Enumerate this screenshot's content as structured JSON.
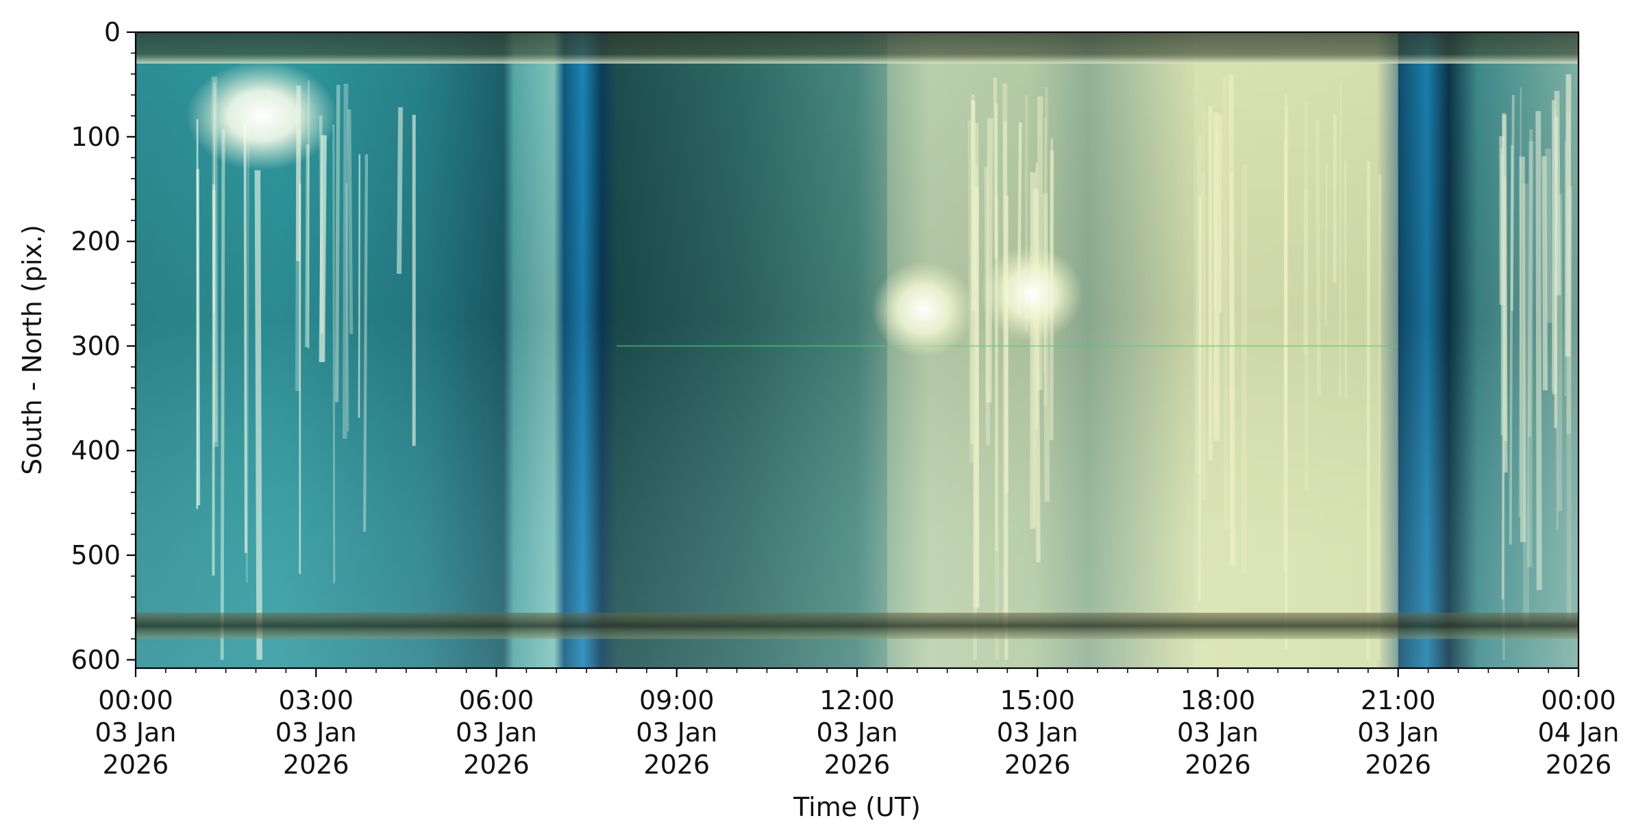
{
  "chart_data": {
    "type": "heatmap",
    "title": "",
    "xlabel": "Time (UT)",
    "ylabel": "South - North (pix.)",
    "x_range": [
      "2026-01-03T00:00",
      "2026-01-04T00:00"
    ],
    "y_range": [
      0,
      608
    ],
    "y_inverted": true,
    "y_ticks": [
      0,
      100,
      200,
      300,
      400,
      500,
      600
    ],
    "y_minor_step": 20,
    "x_ticks": [
      {
        "hour": 0,
        "time": "00:00",
        "date": "03 Jan",
        "year": "2026"
      },
      {
        "hour": 3,
        "time": "03:00",
        "date": "03 Jan",
        "year": "2026"
      },
      {
        "hour": 6,
        "time": "06:00",
        "date": "03 Jan",
        "year": "2026"
      },
      {
        "hour": 9,
        "time": "09:00",
        "date": "03 Jan",
        "year": "2026"
      },
      {
        "hour": 12,
        "time": "12:00",
        "date": "03 Jan",
        "year": "2026"
      },
      {
        "hour": 15,
        "time": "15:00",
        "date": "03 Jan",
        "year": "2026"
      },
      {
        "hour": 18,
        "time": "18:00",
        "date": "03 Jan",
        "year": "2026"
      },
      {
        "hour": 21,
        "time": "21:00",
        "date": "03 Jan",
        "year": "2026"
      },
      {
        "hour": 24,
        "time": "00:00",
        "date": "04 Jan",
        "year": "2026"
      }
    ],
    "x_minor_step_hours": 0.5,
    "grid": false,
    "legend": "none",
    "colormap": "keogram RGB (teal sky, pale-yellow cloud/moonlight, blue twilight bands)",
    "time_segments": [
      {
        "start": 0.0,
        "end": 6.25,
        "appearance": "teal sky with bright moon streak and vertical light streaks"
      },
      {
        "start": 6.25,
        "end": 7.15,
        "appearance": "pale teal transition bands"
      },
      {
        "start": 7.15,
        "end": 8.0,
        "appearance": "deep blue twilight stripes"
      },
      {
        "start": 8.0,
        "end": 12.5,
        "appearance": "dark teal-green sky"
      },
      {
        "start": 12.5,
        "end": 17.6,
        "appearance": "bright pale-yellow glow with moon spots"
      },
      {
        "start": 17.6,
        "end": 21.0,
        "appearance": "pale yellow-green cloud streaks"
      },
      {
        "start": 21.0,
        "end": 21.9,
        "appearance": "deep blue twilight stripes"
      },
      {
        "start": 21.9,
        "end": 24.0,
        "appearance": "dark teal with pale streaks"
      }
    ],
    "horizontal_bands": [
      {
        "y_start": 0,
        "y_end": 30,
        "appearance": "dark olive band"
      },
      {
        "y_start": 555,
        "y_end": 580,
        "appearance": "dark olive band"
      }
    ],
    "bright_spots": [
      {
        "hour": 2.1,
        "y": 80,
        "label": "moon"
      },
      {
        "hour": 13.1,
        "y": 265,
        "label": "moon"
      },
      {
        "hour": 14.9,
        "y": 250,
        "label": "moon"
      }
    ]
  }
}
